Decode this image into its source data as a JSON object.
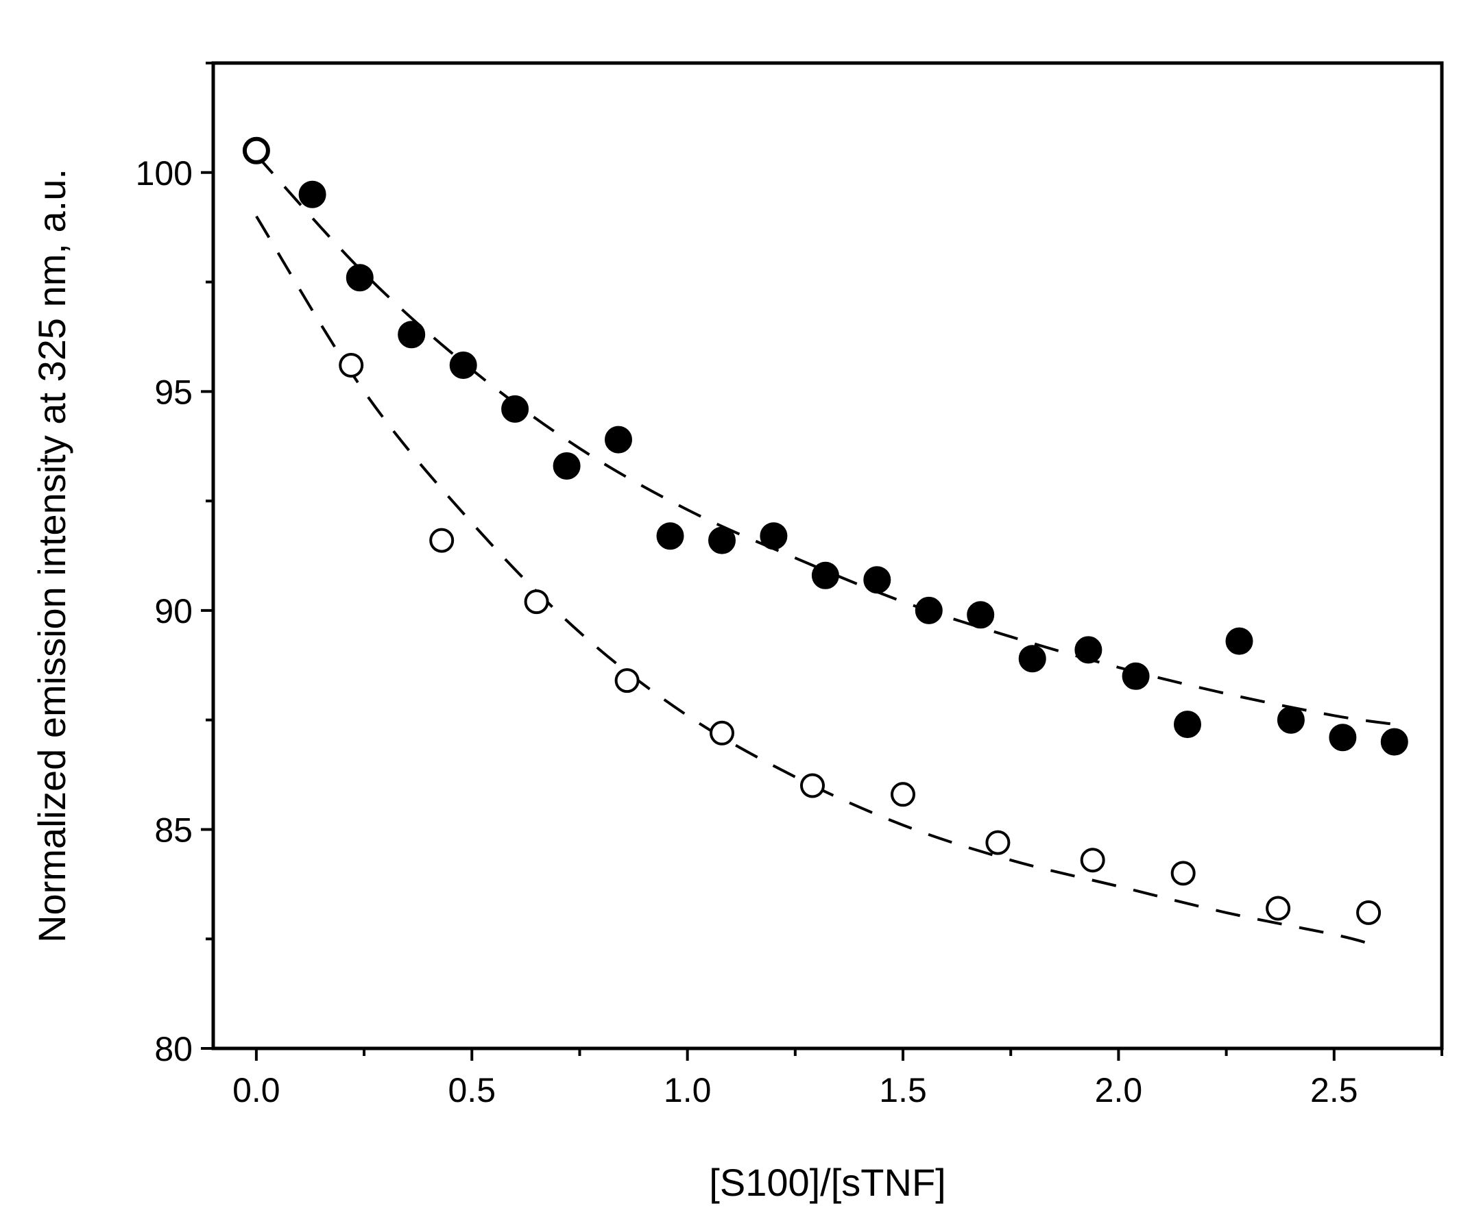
{
  "chart_data": {
    "type": "scatter",
    "title": "",
    "xlabel": "[S100]/[sTNF]",
    "ylabel": "Normalized emission intensity at 325 nm, a.u.",
    "xlim": [
      -0.1,
      2.75
    ],
    "ylim": [
      80,
      102.5
    ],
    "xticks": [
      0.0,
      0.5,
      1.0,
      1.5,
      2.0,
      2.5
    ],
    "xtick_labels": [
      "0.0",
      "0.5",
      "1.0",
      "1.5",
      "2.0",
      "2.5"
    ],
    "yticks": [
      80,
      85,
      90,
      95,
      100
    ],
    "ytick_labels": [
      "80",
      "85",
      "90",
      "95",
      "100"
    ],
    "grid": false,
    "series": [
      {
        "name": "filled",
        "marker": "filled-circle",
        "x": [
          0.0,
          0.13,
          0.24,
          0.36,
          0.48,
          0.6,
          0.72,
          0.84,
          0.96,
          1.08,
          1.2,
          1.32,
          1.44,
          1.56,
          1.68,
          1.8,
          1.93,
          2.04,
          2.16,
          2.28,
          2.4,
          2.52,
          2.64
        ],
        "y": [
          100.5,
          99.5,
          97.6,
          96.3,
          95.6,
          94.6,
          93.3,
          93.9,
          91.7,
          91.6,
          91.7,
          90.8,
          90.7,
          90.0,
          89.9,
          88.9,
          89.1,
          88.5,
          87.4,
          89.3,
          87.5,
          87.1,
          87.0
        ]
      },
      {
        "name": "open",
        "marker": "open-circle",
        "x": [
          0.0,
          0.22,
          0.43,
          0.65,
          0.86,
          1.08,
          1.29,
          1.5,
          1.72,
          1.94,
          2.15,
          2.37,
          2.58
        ],
        "y": [
          100.5,
          95.6,
          91.6,
          90.2,
          88.4,
          87.2,
          86.0,
          85.8,
          84.7,
          84.3,
          84.0,
          83.2,
          83.1
        ]
      }
    ],
    "fits": [
      {
        "name": "filled-fit",
        "style": "dashed",
        "x": [
          0.0,
          0.25,
          0.5,
          0.75,
          1.0,
          1.25,
          1.5,
          1.75,
          2.0,
          2.25,
          2.5,
          2.64
        ],
        "y": [
          100.4,
          97.7,
          95.5,
          93.7,
          92.3,
          91.2,
          90.2,
          89.4,
          88.7,
          88.1,
          87.6,
          87.4
        ]
      },
      {
        "name": "open-fit",
        "style": "dashed",
        "x": [
          0.0,
          0.25,
          0.5,
          0.75,
          1.0,
          1.25,
          1.5,
          1.75,
          2.0,
          2.25,
          2.5,
          2.58
        ],
        "y": [
          99.0,
          95.0,
          92.0,
          89.5,
          87.6,
          86.2,
          85.1,
          84.3,
          83.7,
          83.1,
          82.6,
          82.4
        ]
      }
    ]
  }
}
